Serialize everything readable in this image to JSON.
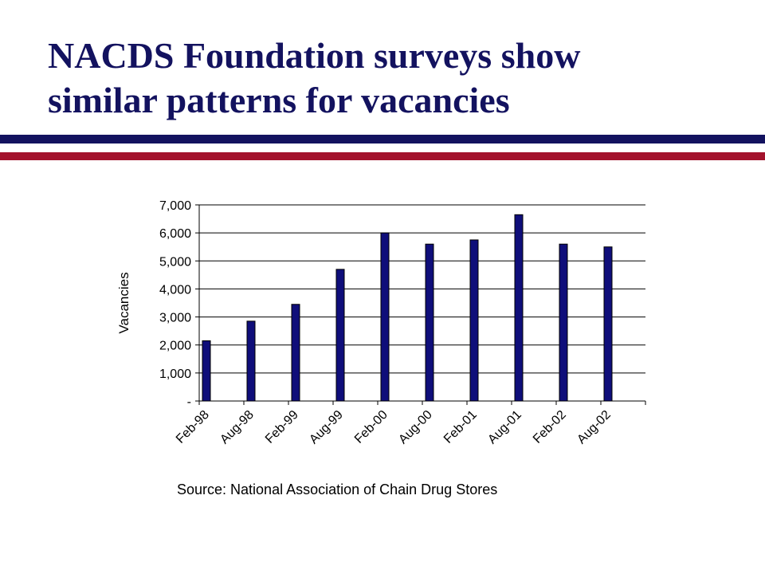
{
  "slide": {
    "title_line1": "NACDS Foundation surveys show",
    "title_line2": "similar patterns for vacancies",
    "source": "Source: National Association of Chain Drug Stores"
  },
  "colors": {
    "title": "#13125f",
    "rule_top": "#13125f",
    "rule_bottom": "#a3122c",
    "bar": "#0f0e7a"
  },
  "chart_data": {
    "type": "bar",
    "title": "",
    "xlabel": "",
    "ylabel": "Vacancies",
    "categories": [
      "Feb-98",
      "Aug-98",
      "Feb-99",
      "Aug-99",
      "Feb-00",
      "Aug-00",
      "Feb-01",
      "Aug-01",
      "Feb-02",
      "Aug-02"
    ],
    "values": [
      2150,
      2850,
      3450,
      4700,
      6000,
      5600,
      5750,
      6650,
      5600,
      5500
    ],
    "ylim": [
      0,
      7000
    ],
    "yticks": [
      0,
      1000,
      2000,
      3000,
      4000,
      5000,
      6000,
      7000
    ],
    "ytick_labels": [
      "-",
      "1,000",
      "2,000",
      "3,000",
      "4,000",
      "5,000",
      "6,000",
      "7,000"
    ],
    "grid": true,
    "legend": "none"
  }
}
